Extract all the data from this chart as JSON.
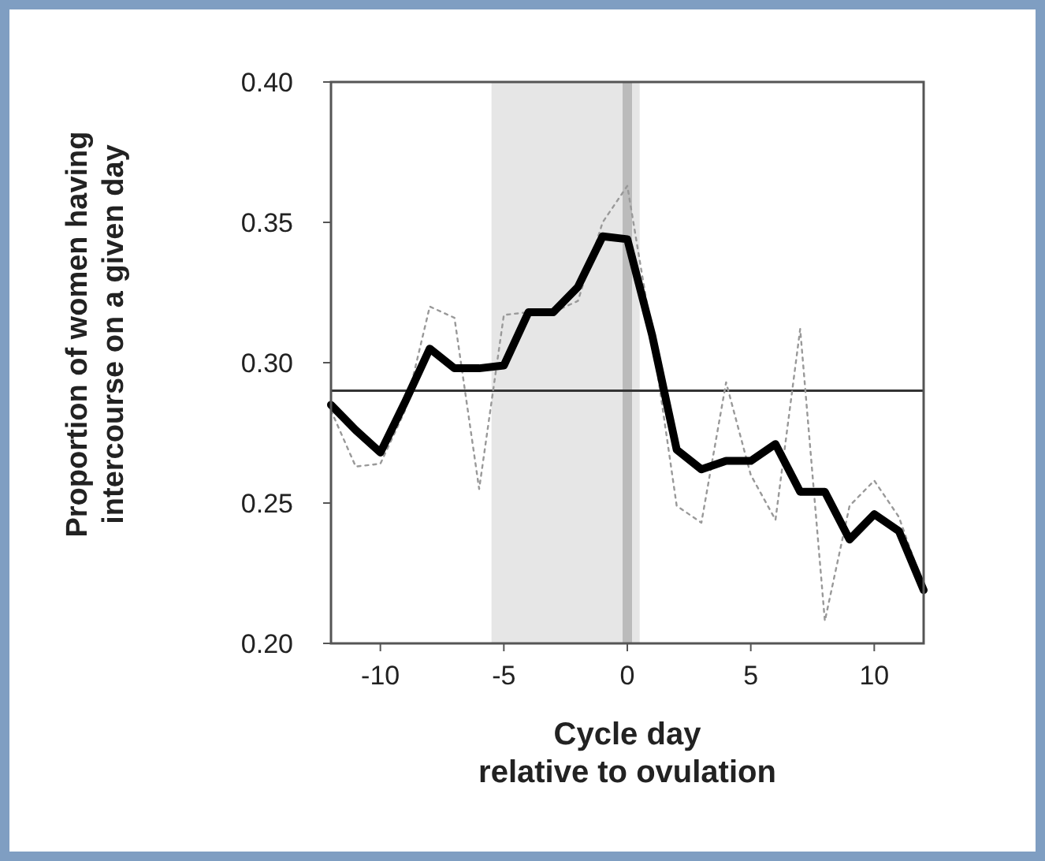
{
  "chart_data": {
    "type": "line",
    "xlabel": "Cycle day\nrelative to ovulation",
    "ylabel": "Proportion of women having\nintercourse on a given day",
    "x": [
      -12,
      -11,
      -10,
      -9,
      -8,
      -7,
      -6,
      -5,
      -4,
      -3,
      -2,
      -1,
      0,
      1,
      2,
      3,
      4,
      5,
      6,
      7,
      8,
      9,
      10,
      11,
      12
    ],
    "series": [
      {
        "color": "#999999",
        "line_style": "dotted",
        "values": [
          0.283,
          0.263,
          0.264,
          0.283,
          0.32,
          0.316,
          0.255,
          0.317,
          0.318,
          0.318,
          0.322,
          0.35,
          0.363,
          0.31,
          0.249,
          0.243,
          0.293,
          0.26,
          0.244,
          0.312,
          0.208,
          0.249,
          0.258,
          0.245,
          0.22
        ]
      },
      {
        "color": "#000000",
        "line_style": "solid",
        "values": [
          0.285,
          0.276,
          0.268,
          0.286,
          0.305,
          0.298,
          0.298,
          0.299,
          0.318,
          0.318,
          0.327,
          0.345,
          0.344,
          0.31,
          0.269,
          0.262,
          0.265,
          0.265,
          0.271,
          0.254,
          0.254,
          0.237,
          0.246,
          0.24,
          0.219
        ]
      }
    ],
    "xlim": [
      -12,
      12
    ],
    "xticks": [
      -10,
      -5,
      0,
      5,
      10
    ],
    "ylim": [
      0.2,
      0.4
    ],
    "yticks": [
      {
        "value": 0.2,
        "label": "0.20"
      },
      {
        "value": 0.25,
        "label": "0.25"
      },
      {
        "value": 0.3,
        "label": "0.30"
      },
      {
        "value": 0.35,
        "label": "0.35"
      },
      {
        "value": 0.4,
        "label": "0.40"
      }
    ],
    "bands": [
      {
        "axis": "x",
        "from": -5.5,
        "to": 0.5,
        "color": "#e6e6e6"
      }
    ],
    "ref_lines": [
      {
        "axis": "x",
        "value": 0,
        "color": "#bbbbbb"
      },
      {
        "axis": "y",
        "value": 0.29,
        "color": "#333333"
      }
    ],
    "grid": false,
    "marker": "none"
  }
}
